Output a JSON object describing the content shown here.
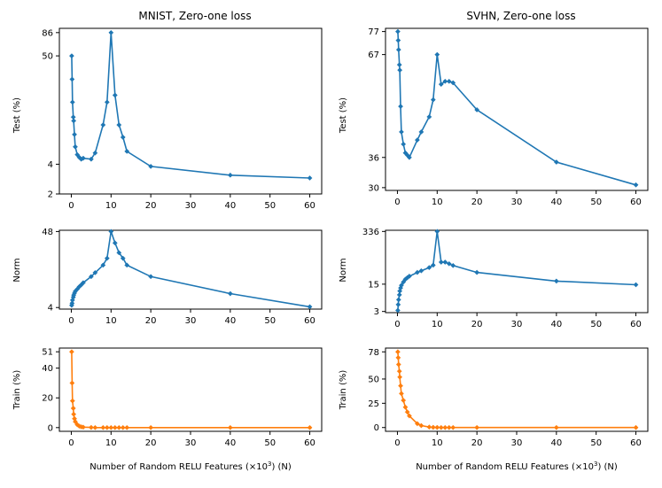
{
  "figure": {
    "xlabel_main": "Number of Random RELU Features (×10",
    "xlabel_sup": "3",
    "xlabel_end": ") (N)"
  },
  "colors": {
    "blue": "#1f77b4",
    "orange": "#ff7f0e",
    "axis": "#000000"
  },
  "chart_data": [
    {
      "id": "mnist-test",
      "type": "line",
      "title": "MNIST, Zero-one loss",
      "ylabel": "Test (%)",
      "xlabel": "",
      "color": "blue",
      "yscale": "log",
      "xlim": [
        -3,
        63
      ],
      "ylim": [
        2,
        95
      ],
      "xticks": [
        0,
        10,
        20,
        30,
        40,
        50,
        60
      ],
      "yticks": [
        2,
        4,
        50,
        86
      ],
      "ytick_labels": [
        "2",
        "4",
        "50",
        "86"
      ],
      "x": [
        0.1,
        0.2,
        0.3,
        0.5,
        0.6,
        0.8,
        1,
        1.5,
        2,
        2.5,
        3,
        5,
        6,
        8,
        9,
        10,
        11,
        12,
        13,
        14,
        20,
        40,
        60
      ],
      "y": [
        50,
        29,
        17,
        12,
        11,
        8,
        6,
        5,
        4.7,
        4.5,
        4.6,
        4.5,
        5.2,
        10,
        17,
        86,
        20,
        10,
        7.5,
        5.4,
        3.8,
        3.1,
        2.9
      ]
    },
    {
      "id": "svhn-test",
      "type": "line",
      "title": "SVHN, Zero-one loss",
      "ylabel": "Test (%)",
      "xlabel": "",
      "color": "blue",
      "yscale": "log",
      "xlim": [
        -3,
        63
      ],
      "ylim": [
        29.5,
        78.5
      ],
      "xticks": [
        0,
        10,
        20,
        30,
        40,
        50,
        60
      ],
      "yticks": [
        30,
        36,
        67,
        77
      ],
      "ytick_labels": [
        "30",
        "36",
        "67",
        "77"
      ],
      "x": [
        0.1,
        0.2,
        0.3,
        0.5,
        0.6,
        0.8,
        1,
        1.5,
        2,
        2.5,
        3,
        5,
        6,
        8,
        9,
        10,
        11,
        12,
        13,
        14,
        20,
        40,
        60
      ],
      "y": [
        77,
        73,
        69,
        63,
        61,
        49,
        42,
        39,
        37,
        36.5,
        36,
        40,
        42,
        46,
        51,
        67,
        56,
        57,
        57,
        56.5,
        48,
        35,
        30.5
      ]
    },
    {
      "id": "mnist-norm",
      "type": "line",
      "title": "",
      "ylabel": "Norm",
      "xlabel": "",
      "color": "blue",
      "yscale": "log",
      "xlim": [
        -3,
        63
      ],
      "ylim": [
        3.8,
        50
      ],
      "xticks": [
        0,
        10,
        20,
        30,
        40,
        50,
        60
      ],
      "yticks": [
        4,
        48
      ],
      "ytick_labels": [
        "4",
        "48"
      ],
      "x": [
        0.1,
        0.2,
        0.3,
        0.5,
        0.6,
        0.8,
        1,
        1.5,
        2,
        2.5,
        3,
        5,
        6,
        8,
        9,
        10,
        11,
        12,
        13,
        14,
        20,
        40,
        60
      ],
      "y": [
        4.3,
        4.6,
        5.1,
        5.6,
        6.0,
        6.4,
        6.8,
        7.3,
        7.9,
        8.4,
        9.0,
        11,
        12.5,
        16,
        20,
        48,
        33,
        24,
        20,
        16,
        11,
        6.3,
        4.1
      ]
    },
    {
      "id": "svhn-norm",
      "type": "line",
      "title": "",
      "ylabel": "Norm",
      "xlabel": "",
      "color": "blue",
      "yscale": "log",
      "xlim": [
        -3,
        63
      ],
      "ylim": [
        2.8,
        360
      ],
      "xticks": [
        0,
        10,
        20,
        30,
        40,
        50,
        60
      ],
      "yticks": [
        3,
        15,
        336
      ],
      "ytick_labels": [
        "3",
        "15",
        "336"
      ],
      "x": [
        0.1,
        0.2,
        0.3,
        0.5,
        0.6,
        0.8,
        1,
        1.5,
        2,
        2.5,
        3,
        5,
        6,
        8,
        9,
        10,
        11,
        12,
        13,
        14,
        20,
        40,
        60
      ],
      "y": [
        3.2,
        4.5,
        6,
        8,
        10,
        12,
        14,
        17,
        20,
        22,
        24,
        30,
        33,
        40,
        46,
        336,
        55,
        55,
        50,
        45,
        30,
        18,
        14.5
      ]
    },
    {
      "id": "mnist-train",
      "type": "line",
      "title": "",
      "ylabel": "Train (%)",
      "xlabel": "x-shared",
      "color": "orange",
      "yscale": "linear",
      "xlim": [
        -3,
        63
      ],
      "ylim": [
        -2.5,
        53.5
      ],
      "xticks": [
        0,
        10,
        20,
        30,
        40,
        50,
        60
      ],
      "yticks": [
        0,
        20,
        40,
        51
      ],
      "ytick_labels": [
        "0",
        "20",
        "40",
        "51"
      ],
      "x": [
        0.1,
        0.2,
        0.3,
        0.5,
        0.6,
        0.8,
        1,
        1.5,
        2,
        2.5,
        3,
        5,
        6,
        8,
        9,
        10,
        11,
        12,
        13,
        14,
        20,
        40,
        60
      ],
      "y": [
        51,
        30,
        18,
        13,
        9,
        6,
        4,
        2,
        1,
        0.5,
        0.3,
        0.1,
        0,
        0,
        0,
        0,
        0,
        0,
        0,
        0,
        0,
        0,
        0
      ]
    },
    {
      "id": "svhn-train",
      "type": "line",
      "title": "",
      "ylabel": "Train (%)",
      "xlabel": "x-shared",
      "color": "orange",
      "yscale": "linear",
      "xlim": [
        -3,
        63
      ],
      "ylim": [
        -3.9,
        81.9
      ],
      "xticks": [
        0,
        10,
        20,
        30,
        40,
        50,
        60
      ],
      "yticks": [
        0,
        25,
        50,
        78
      ],
      "ytick_labels": [
        "0",
        "25",
        "50",
        "78"
      ],
      "x": [
        0.1,
        0.2,
        0.3,
        0.5,
        0.6,
        0.8,
        1,
        1.5,
        2,
        2.5,
        3,
        5,
        6,
        8,
        9,
        10,
        11,
        12,
        13,
        14,
        20,
        40,
        60
      ],
      "y": [
        78,
        72,
        65,
        58,
        52,
        43,
        35,
        28,
        21,
        16,
        12,
        4,
        2,
        0.5,
        0.2,
        0.1,
        0,
        0,
        0,
        0,
        0,
        0,
        0
      ]
    }
  ]
}
